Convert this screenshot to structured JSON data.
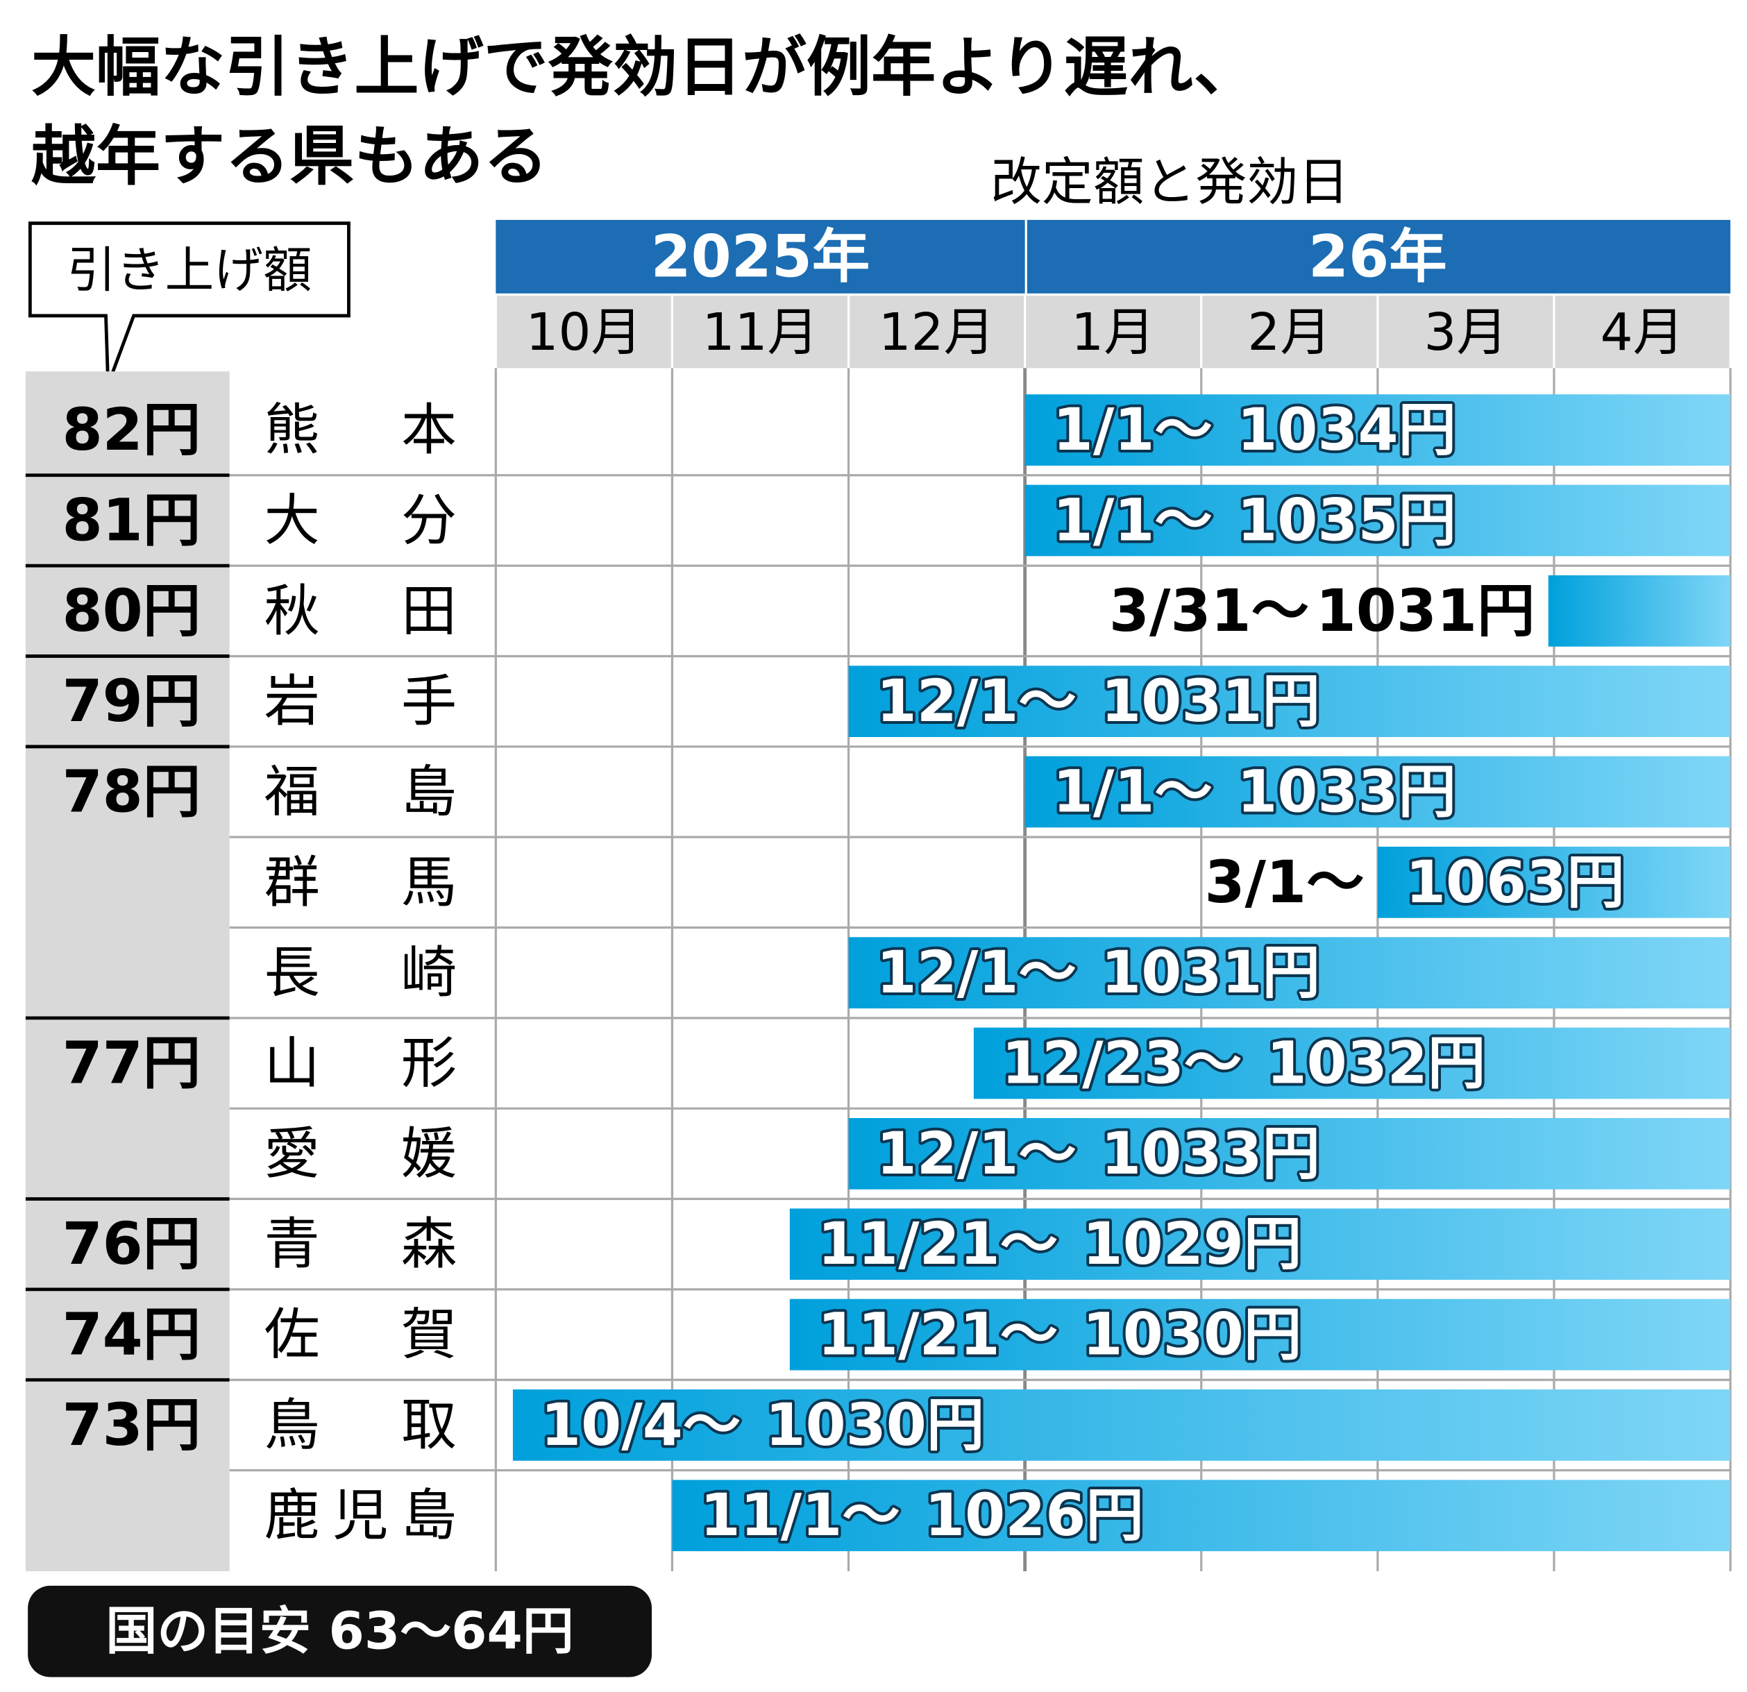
{
  "title_lines": [
    "大幅な引き上げで発効日が例年より遅れ、",
    "越年する県もある"
  ],
  "subtitle": "改定額と発効日",
  "tag": "引き上げ額",
  "years": [
    {
      "label": "2025年",
      "months": [
        "10月",
        "11月",
        "12月"
      ]
    },
    {
      "label": "26年",
      "months": [
        "1月",
        "2月",
        "3月",
        "4月"
      ]
    }
  ],
  "groups": [
    {
      "increase": "82円",
      "rows": [
        {
          "name": "熊本",
          "date": "1/1～",
          "wage": "1034円"
        }
      ]
    },
    {
      "increase": "81円",
      "rows": [
        {
          "name": "大分",
          "date": "1/1～",
          "wage": "1035円"
        }
      ]
    },
    {
      "increase": "80円",
      "rows": [
        {
          "name": "秋田",
          "date": "3/31～",
          "wage": "1031円"
        }
      ]
    },
    {
      "increase": "79円",
      "rows": [
        {
          "name": "岩手",
          "date": "12/1～",
          "wage": "1031円"
        }
      ]
    },
    {
      "increase": "78円",
      "rows": [
        {
          "name": "福島",
          "date": "1/1～",
          "wage": "1033円"
        },
        {
          "name": "群馬",
          "date": "3/1～",
          "wage": "1063円"
        },
        {
          "name": "長崎",
          "date": "12/1～",
          "wage": "1031円"
        }
      ]
    },
    {
      "increase": "77円",
      "rows": [
        {
          "name": "山形",
          "date": "12/23～",
          "wage": "1032円"
        },
        {
          "name": "愛媛",
          "date": "12/1～",
          "wage": "1033円"
        }
      ]
    },
    {
      "increase": "76円",
      "rows": [
        {
          "name": "青森",
          "date": "11/21～",
          "wage": "1029円"
        }
      ]
    },
    {
      "increase": "74円",
      "rows": [
        {
          "name": "佐賀",
          "date": "11/21～",
          "wage": "1030円"
        }
      ]
    },
    {
      "increase": "73円",
      "rows": [
        {
          "name": "鳥取",
          "date": "10/4～",
          "wage": "1030円"
        },
        {
          "name": "鹿児島",
          "date": "11/1～",
          "wage": "1026円"
        }
      ]
    }
  ],
  "footer": "国の目安 63～64円"
}
